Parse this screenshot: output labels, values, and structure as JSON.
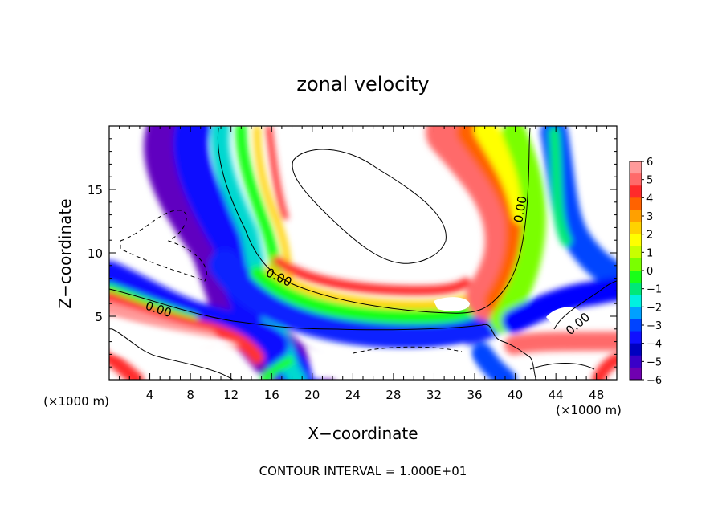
{
  "chart_data": {
    "type": "heatmap",
    "title": "zonal velocity",
    "xlabel": "X−coordinate",
    "ylabel": "Z−coordinate",
    "x_unit_left": "(×1000 m)",
    "x_unit_right": "(×1000 m)",
    "footer": "CONTOUR INTERVAL = 1.000E+01",
    "xlim": [
      0,
      50
    ],
    "ylim": [
      0,
      20
    ],
    "x_ticks": [
      4,
      8,
      12,
      16,
      20,
      24,
      28,
      32,
      36,
      40,
      44,
      48
    ],
    "y_ticks": [
      5,
      10,
      15
    ],
    "colorbar": {
      "min": -6,
      "max": 6,
      "labels": [
        "6",
        "5",
        "4",
        "3",
        "2",
        "1",
        "0",
        "−1",
        "−2",
        "−3",
        "−4",
        "−5",
        "−6"
      ],
      "colors": [
        "#ff9a9a",
        "#ff6a6a",
        "#ff2a2a",
        "#ff6200",
        "#ffa000",
        "#ffd200",
        "#ffff00",
        "#c8ff00",
        "#7aff00",
        "#18ff18",
        "#00e878",
        "#00f0e0",
        "#00a0ff",
        "#0044ff",
        "#1010ff",
        "#0000c0",
        "#3a00c8",
        "#7000b0"
      ]
    },
    "contour_labels": [
      "0.00",
      "0.00",
      "0.00",
      "0.00"
    ],
    "legend": "colorbar right"
  }
}
